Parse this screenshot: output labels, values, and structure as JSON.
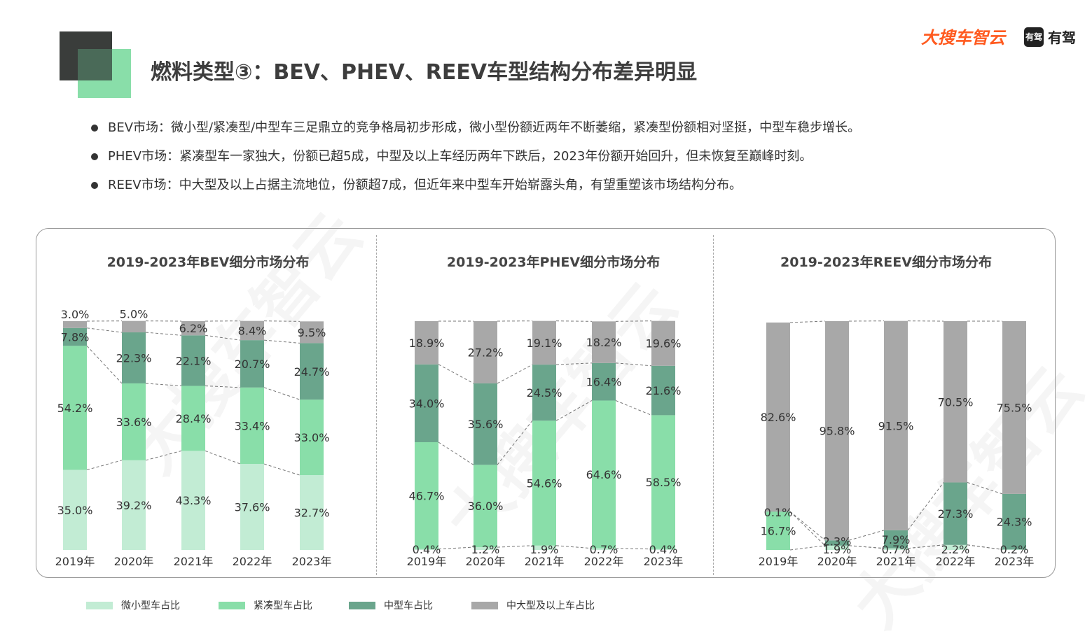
{
  "header": {
    "title": "燃料类型③：BEV、PHEV、REEV车型结构分布差异明显",
    "brand_primary": "大搜车智云",
    "brand_secondary": "有驾",
    "brand_secondary_logo": "有驾"
  },
  "bullets": [
    "BEV市场：微小型/紧凑型/中型车三足鼎立的竞争格局初步形成，微小型份额近两年不断萎缩，紧凑型份额相对坚挺，中型车稳步增长。",
    "PHEV市场：紧凑型车一家独大，份额已超5成，中型及以上车经历两年下跌后，2023年份额开始回升，但未恢复至巅峰时刻。",
    "REEV市场：中大型及以上占据主流地位，份额超7成，但近年来中型车开始崭露头角，有望重塑该市场结构分布。"
  ],
  "watermark_text": "大搜车智云",
  "colors": {
    "mini": "#c2ecd4",
    "compact": "#89dea9",
    "mid": "#6aa58c",
    "large": "#a8a8a8",
    "deco_dark": "#3a3d3b",
    "deco_green": "#89dea9",
    "brand_orange": "#ff5a1f"
  },
  "legend": [
    {
      "key": "mini",
      "label": "微小型车占比"
    },
    {
      "key": "compact",
      "label": "紧凑型车占比"
    },
    {
      "key": "mid",
      "label": "中型车占比"
    },
    {
      "key": "large",
      "label": "中大型及以上车占比"
    }
  ],
  "chart_data": [
    {
      "type": "bar",
      "stacked": true,
      "title": "2019-2023年BEV细分市场分布",
      "categories": [
        "2019年",
        "2020年",
        "2021年",
        "2022年",
        "2023年"
      ],
      "series": [
        {
          "key": "mini",
          "name": "微小型车占比",
          "values": [
            35.0,
            39.2,
            43.3,
            37.6,
            32.7
          ]
        },
        {
          "key": "compact",
          "name": "紧凑型车占比",
          "values": [
            54.2,
            33.6,
            28.4,
            33.4,
            33.0
          ]
        },
        {
          "key": "mid",
          "name": "中型车占比",
          "values": [
            7.8,
            22.3,
            22.1,
            20.7,
            24.7
          ]
        },
        {
          "key": "large",
          "name": "中大型及以上车占比",
          "values": [
            3.0,
            5.0,
            6.2,
            8.4,
            9.5
          ]
        }
      ],
      "ylim": [
        0,
        100
      ],
      "unit": "%"
    },
    {
      "type": "bar",
      "stacked": true,
      "title": "2019-2023年PHEV细分市场分布",
      "categories": [
        "2019年",
        "2020年",
        "2021年",
        "2022年",
        "2023年"
      ],
      "series": [
        {
          "key": "mini",
          "name": "微小型车占比",
          "values": [
            0.4,
            1.2,
            1.9,
            0.7,
            0.4
          ]
        },
        {
          "key": "compact",
          "name": "紧凑型车占比",
          "values": [
            46.7,
            36.0,
            54.6,
            64.6,
            58.5
          ]
        },
        {
          "key": "mid",
          "name": "中型车占比",
          "values": [
            34.0,
            35.6,
            24.5,
            16.4,
            21.6
          ]
        },
        {
          "key": "large",
          "name": "中大型及以上车占比",
          "values": [
            18.9,
            27.2,
            19.1,
            18.2,
            19.6
          ]
        }
      ],
      "ylim": [
        0,
        100
      ],
      "unit": "%"
    },
    {
      "type": "bar",
      "stacked": true,
      "title": "2019-2023年REEV细分市场分布",
      "categories": [
        "2019年",
        "2020年",
        "2021年",
        "2022年",
        "2023年"
      ],
      "series": [
        {
          "key": "mini",
          "name": "微小型车占比",
          "values": [
            0,
            1.9,
            0.7,
            2.2,
            0.2
          ]
        },
        {
          "key": "compact",
          "name": "紧凑型车占比",
          "values": [
            16.7,
            0,
            0,
            0,
            0
          ]
        },
        {
          "key": "mid",
          "name": "中型车占比",
          "values": [
            0.1,
            2.3,
            7.9,
            27.3,
            24.3
          ]
        },
        {
          "key": "large",
          "name": "中大型及以上车占比",
          "values": [
            82.6,
            95.8,
            91.5,
            70.5,
            75.5
          ]
        }
      ],
      "ylim": [
        0,
        100
      ],
      "unit": "%"
    }
  ]
}
